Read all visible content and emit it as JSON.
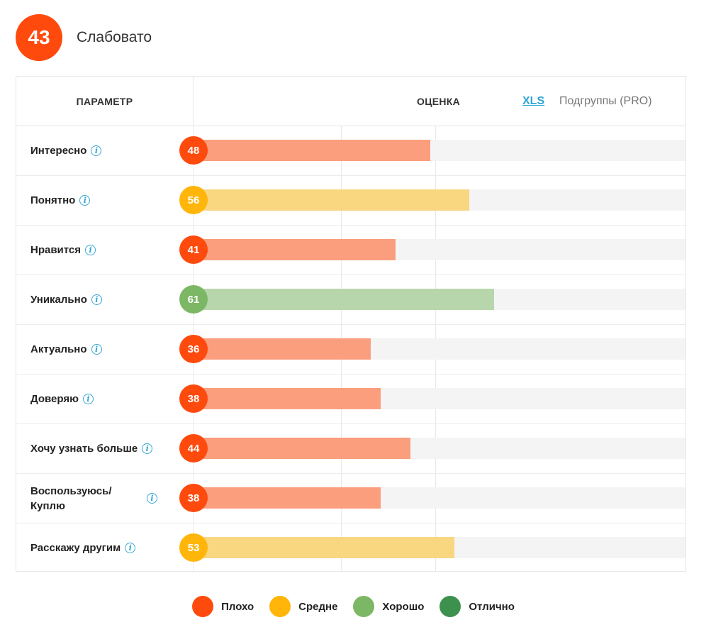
{
  "overall": {
    "score": "43",
    "label": "Слабовато",
    "color": "#ff4a0d"
  },
  "header": {
    "param_label": "ПАРАМЕТР",
    "score_label": "ОЦЕНКА",
    "xls_label": "XLS",
    "subgroups_label": "Подгруппы (PRO)"
  },
  "info_icon_glyph": "i",
  "colors": {
    "bad_dot": "#ff4a0d",
    "bad_bar": "#fb9e7e",
    "medium_dot": "#ffb50a",
    "medium_bar": "#f9d680",
    "good_dot": "#7cb765",
    "good_bar": "#b8d6ab",
    "excellent_dot": "#3d914f",
    "track": "#f4f4f4"
  },
  "chart_data": {
    "type": "bar",
    "orientation": "horizontal",
    "xlim": [
      0,
      100
    ],
    "categories": [
      "Интересно",
      "Понятно",
      "Нравится",
      "Уникально",
      "Актуально",
      "Доверяю",
      "Хочу узнать больше",
      "Воспользуюсь/ Куплю",
      "Расскажу другим"
    ],
    "values": [
      48,
      56,
      41,
      61,
      36,
      38,
      44,
      38,
      53
    ],
    "levels": [
      "bad",
      "medium",
      "bad",
      "good",
      "bad",
      "bad",
      "bad",
      "bad",
      "medium"
    ],
    "legend": [
      {
        "key": "bad",
        "label": "Плохо"
      },
      {
        "key": "medium",
        "label": "Средне"
      },
      {
        "key": "good",
        "label": "Хорошо"
      },
      {
        "key": "excellent",
        "label": "Отлично"
      }
    ],
    "legend_position": "bottom-center"
  }
}
